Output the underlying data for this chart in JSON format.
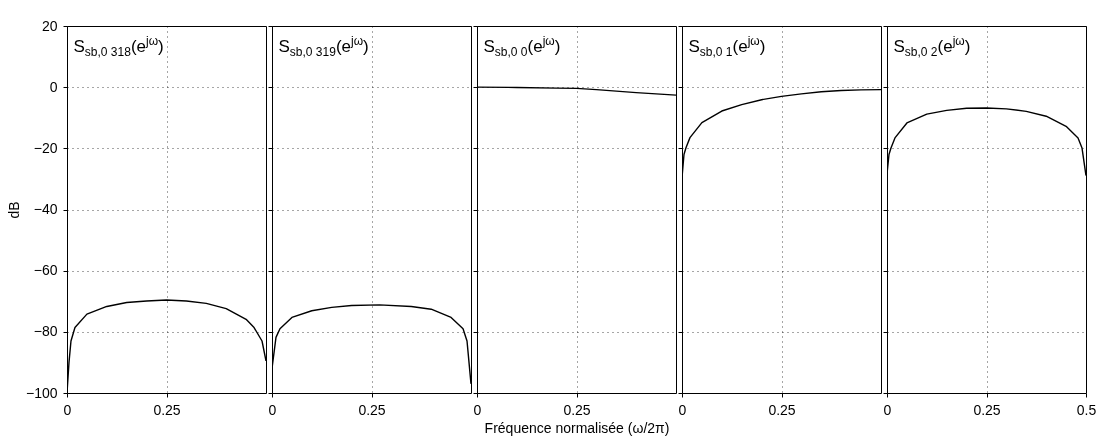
{
  "chart_data": [
    {
      "type": "line",
      "ylabel": "dB",
      "annotations": [
        "S$_{sb,0 318}$(e$^{jω}$)"
      ],
      "xlim": [
        0,
        0.5
      ],
      "xticks": [
        0,
        0.25
      ],
      "ylim": [
        -100,
        20
      ],
      "yticks": [
        -100,
        -80,
        -60,
        -40,
        -20,
        0,
        20
      ],
      "grid": true,
      "series": [
        {
          "color": "#000000",
          "x": [
            0,
            0.005,
            0.01,
            0.02,
            0.05,
            0.1,
            0.15,
            0.2,
            0.25,
            0.3,
            0.35,
            0.4,
            0.45,
            0.47,
            0.49,
            0.5
          ],
          "values": [
            -100,
            -90,
            -83,
            -78.6,
            -74.2,
            -71.7,
            -70.4,
            -69.9,
            -69.6,
            -69.9,
            -70.7,
            -72.4,
            -75.9,
            -78.6,
            -83,
            -89.5
          ]
        }
      ]
    },
    {
      "type": "line",
      "tick_labels": "x",
      "annotations": [
        "S$_{sb,0 319}$(e$^{jω}$)"
      ],
      "xlim": [
        0,
        0.5
      ],
      "xticks": [
        0,
        0.25
      ],
      "ylim": [
        -100,
        20
      ],
      "yticks": [
        -100,
        -80,
        -60,
        -40,
        -20,
        0,
        20
      ],
      "grid": true,
      "series": [
        {
          "color": "#000000",
          "x": [
            0,
            0.01,
            0.02,
            0.05,
            0.1,
            0.15,
            0.2,
            0.27,
            0.35,
            0.4,
            0.45,
            0.48,
            0.49,
            0.5
          ],
          "values": [
            -92,
            -81.8,
            -79,
            -75.3,
            -73.1,
            -72,
            -71.4,
            -71.2,
            -71.7,
            -72.6,
            -75.3,
            -79,
            -83,
            -97
          ]
        }
      ]
    },
    {
      "type": "line",
      "tick_labels": "x",
      "xlabel": "Fréquence normalisée (ω/2π)",
      "annotations": [
        "S$_{sb,0 0}$(e$^{jω}$)"
      ],
      "xlim": [
        0,
        0.5
      ],
      "xticks": [
        0,
        0.25
      ],
      "ylim": [
        -100,
        20
      ],
      "yticks": [
        -100,
        -80,
        -60,
        -40,
        -20,
        0,
        20
      ],
      "grid": true,
      "series": [
        {
          "color": "#000000",
          "x": [
            0,
            0.1,
            0.2,
            0.25,
            0.3,
            0.4,
            0.5
          ],
          "values": [
            0,
            -0.1,
            -0.3,
            -0.4,
            -0.8,
            -1.8,
            -2.6
          ]
        }
      ]
    },
    {
      "type": "line",
      "tick_labels": "x",
      "annotations": [
        "S$_{sb,0 1}$(e$^{jω}$)"
      ],
      "xlim": [
        0,
        0.5
      ],
      "xticks": [
        0,
        0.25
      ],
      "ylim": [
        -100,
        20
      ],
      "yticks": [
        -100,
        -80,
        -60,
        -40,
        -20,
        0,
        20
      ],
      "grid": true,
      "series": [
        {
          "color": "#000000",
          "x": [
            0,
            0.005,
            0.01,
            0.02,
            0.05,
            0.1,
            0.15,
            0.2,
            0.25,
            0.3,
            0.35,
            0.4,
            0.45,
            0.5
          ],
          "values": [
            -29.6,
            -22,
            -19.8,
            -16.5,
            -11.6,
            -7.8,
            -5.7,
            -4.1,
            -3,
            -2.2,
            -1.5,
            -1.1,
            -0.9,
            -0.8
          ]
        }
      ]
    },
    {
      "type": "line",
      "tick_labels": "x",
      "annotations": [
        "S$_{sb,0 2}$(e$^{jω}$)"
      ],
      "xlim": [
        0,
        0.5
      ],
      "xticks": [
        0,
        0.25,
        0.5
      ],
      "ylim": [
        -100,
        20
      ],
      "yticks": [
        -100,
        -80,
        -60,
        -40,
        -20,
        0,
        20
      ],
      "grid": true,
      "series": [
        {
          "color": "#000000",
          "x": [
            0,
            0.005,
            0.01,
            0.02,
            0.05,
            0.1,
            0.15,
            0.2,
            0.25,
            0.3,
            0.35,
            0.4,
            0.45,
            0.48,
            0.49,
            0.5
          ],
          "values": [
            -28.4,
            -22,
            -19.9,
            -16.6,
            -11.7,
            -8.8,
            -7.6,
            -6.9,
            -6.8,
            -7.1,
            -7.9,
            -9.5,
            -12.8,
            -16.6,
            -19.9,
            -28.9
          ]
        }
      ]
    }
  ]
}
